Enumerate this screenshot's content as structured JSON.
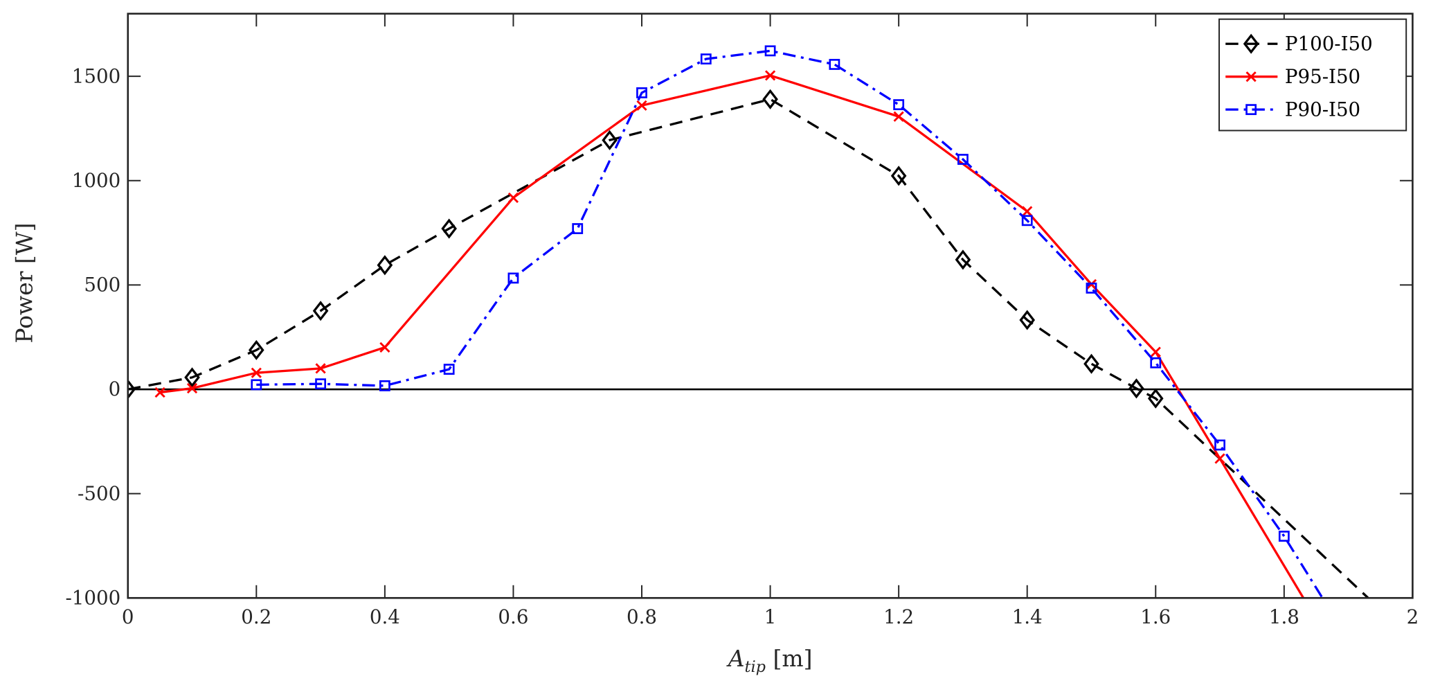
{
  "chart_data": {
    "type": "line",
    "xlabel": {
      "main": "A",
      "sub": "tip",
      "unit": " [m]"
    },
    "ylabel": "Power [W]",
    "xlim": [
      0,
      2
    ],
    "ylim": [
      -1000,
      1800
    ],
    "xticks": [
      0,
      0.2,
      0.4,
      0.6,
      0.8,
      1,
      1.2,
      1.4,
      1.6,
      1.8,
      2
    ],
    "xtick_labels": [
      "0",
      "0.2",
      "0.4",
      "0.6",
      "0.8",
      "1",
      "1.2",
      "1.4",
      "1.6",
      "1.8",
      "2"
    ],
    "yticks": [
      -1000,
      -500,
      0,
      500,
      1000,
      1500
    ],
    "ytick_labels": [
      "-1000",
      "-500",
      "0",
      "500",
      "1000",
      "1500"
    ],
    "grid": false,
    "zero_line": true,
    "legend_position": "top-right",
    "series": [
      {
        "name": "P100-I50",
        "color": "#000000",
        "dash": "dashed",
        "marker": "diamond",
        "x": [
          0,
          0.1,
          0.2,
          0.3,
          0.4,
          0.5,
          0.75,
          1.0,
          1.2,
          1.3,
          1.4,
          1.5,
          1.57,
          1.6,
          2.0
        ],
        "y": [
          0,
          57,
          188,
          376,
          595,
          770,
          1194,
          1390,
          1023,
          621,
          332,
          122,
          4,
          -44,
          -1200
        ],
        "marker_count": 14
      },
      {
        "name": "P95-I50",
        "color": "#ff0000",
        "dash": "solid",
        "marker": "x",
        "x": [
          0.05,
          0.1,
          0.2,
          0.3,
          0.4,
          0.6,
          0.8,
          1.0,
          1.2,
          1.4,
          1.5,
          1.6,
          1.7,
          1.9
        ],
        "y": [
          -15,
          5,
          79,
          100,
          201,
          918,
          1360,
          1504,
          1307,
          853,
          503,
          179,
          -332,
          -1360
        ],
        "marker_count": 13
      },
      {
        "name": "P90-I50",
        "color": "#0000ff",
        "dash": "dashdot",
        "marker": "square",
        "x": [
          0.2,
          0.3,
          0.4,
          0.5,
          0.6,
          0.7,
          0.8,
          0.9,
          1.0,
          1.1,
          1.2,
          1.3,
          1.4,
          1.5,
          1.6,
          1.7,
          1.8,
          1.9
        ],
        "y": [
          22,
          26,
          17,
          96,
          533,
          770,
          1421,
          1583,
          1622,
          1557,
          1364,
          1102,
          809,
          485,
          127,
          -267,
          -704,
          -1200
        ],
        "marker_count": 17
      }
    ]
  }
}
